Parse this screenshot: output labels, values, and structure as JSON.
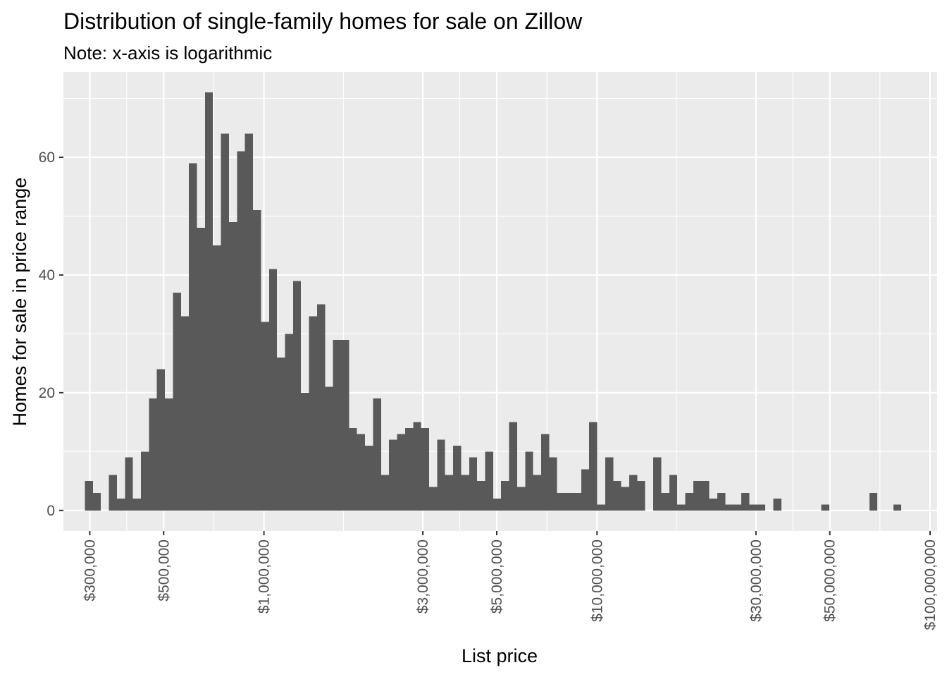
{
  "chart_data": {
    "type": "bar",
    "title": "Distribution of single-family homes for sale on Zillow",
    "subtitle": "Note: x-axis is logarithmic",
    "xlabel": "List price",
    "ylabel": "Homes for sale in price range",
    "x_scale": "log10",
    "xlim": [
      250000,
      105000000
    ],
    "ylim": [
      -3.5,
      74.5
    ],
    "x_ticks": [
      300000,
      500000,
      1000000,
      3000000,
      5000000,
      10000000,
      30000000,
      50000000,
      100000000
    ],
    "x_tick_labels": [
      "$300,000",
      "$500,000",
      "$1,000,000",
      "$3,000,000",
      "$5,000,000",
      "$10,000,000",
      "$30,000,000",
      "$50,000,000",
      "$100,000,000"
    ],
    "y_ticks": [
      0,
      20,
      40,
      60
    ],
    "y_tick_labels": [
      "0",
      "20",
      "40",
      "60"
    ],
    "bin_start": 290000,
    "bin_end": 82000000,
    "counts": [
      5,
      3,
      0,
      6,
      2,
      9,
      2,
      10,
      19,
      24,
      19,
      37,
      33,
      59,
      48,
      71,
      45,
      64,
      49,
      61,
      64,
      51,
      32,
      41,
      26,
      30,
      39,
      20,
      33,
      35,
      21,
      29,
      29,
      14,
      13,
      11,
      19,
      6,
      12,
      13,
      14,
      15,
      14,
      4,
      12,
      6,
      11,
      6,
      9,
      5,
      10,
      2,
      5,
      15,
      4,
      10,
      6,
      13,
      9,
      3,
      3,
      3,
      7,
      15,
      1,
      9,
      5,
      4,
      6,
      5,
      0,
      9,
      3,
      6,
      1,
      3,
      5,
      5,
      2,
      3,
      1,
      1,
      3,
      1,
      1,
      0,
      2,
      0,
      0,
      0,
      0,
      0,
      1,
      0,
      0,
      0,
      0,
      0,
      3,
      0,
      0,
      1
    ],
    "grid": true,
    "colors": {
      "panel": "#ebebeb",
      "grid": "#ffffff",
      "bar": "#595959",
      "tick": "#333333"
    }
  }
}
